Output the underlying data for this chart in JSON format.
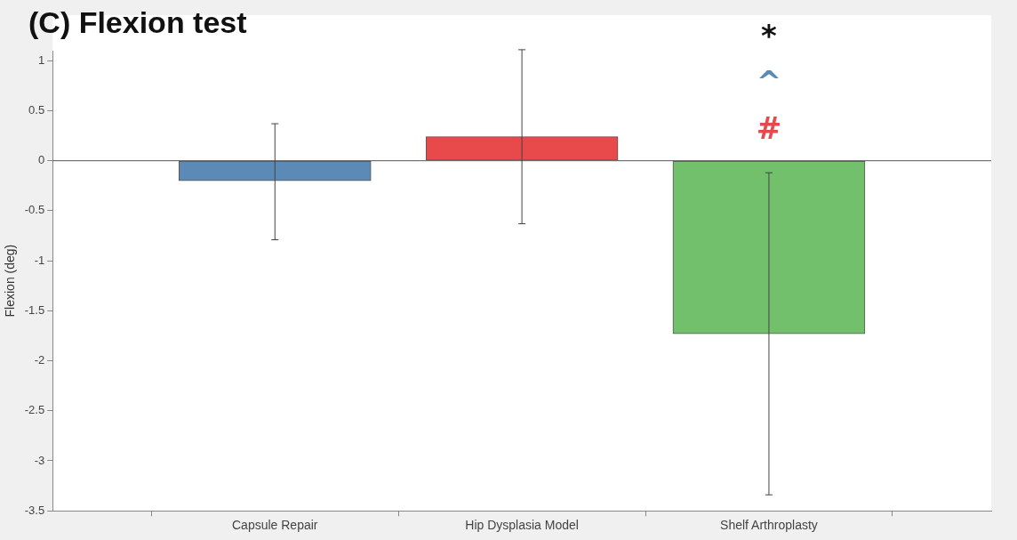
{
  "chart_data": {
    "type": "bar",
    "title": "(C) Flexion test",
    "ylabel": "Flexion (deg)",
    "categories": [
      "Capsule Repair",
      "Hip Dysplasia Model",
      "Shelf Arthroplasty"
    ],
    "values": [
      -0.2,
      0.24,
      -1.73
    ],
    "colors": [
      "#5a8ab5",
      "#e84a4c",
      "#72bf6c"
    ],
    "errors": [
      [
        -0.79,
        0.37
      ],
      [
        -0.63,
        1.11
      ],
      [
        -3.34,
        -0.12
      ]
    ],
    "ylim": [
      -3.5,
      1.1
    ],
    "yticks": [
      -3.5,
      -3,
      -2.5,
      -2,
      -1.5,
      -1,
      -0.5,
      0,
      0.5,
      1
    ],
    "grid": false,
    "legend": false,
    "ref_lines": [
      {
        "axis": "y",
        "value": 0,
        "color": "#555555"
      }
    ],
    "annotations": [
      "*",
      "^",
      "#"
    ]
  }
}
